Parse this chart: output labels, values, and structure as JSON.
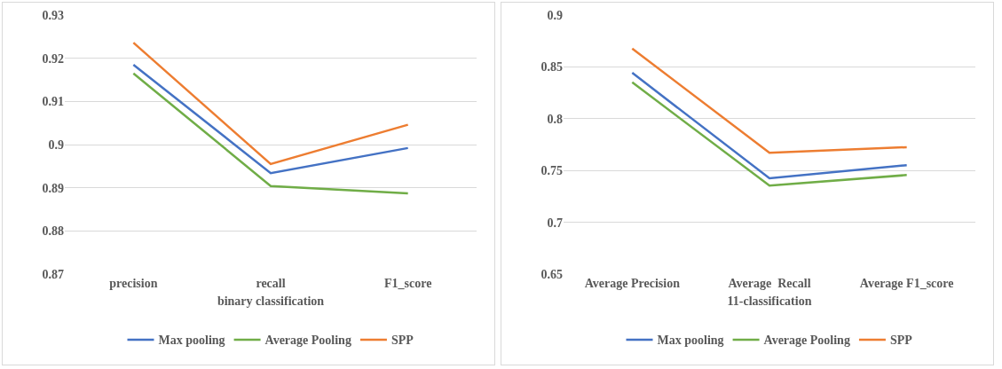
{
  "chart_data": [
    {
      "type": "line",
      "xlabel": "binary classification",
      "categories": [
        "precision",
        "recall",
        "F1_score"
      ],
      "ylim": [
        0.87,
        0.93
      ],
      "yticks": [
        0.87,
        0.88,
        0.89,
        0.9,
        0.91,
        0.92,
        0.93
      ],
      "grid": "y",
      "legend": "bottom",
      "series": [
        {
          "name": "Max pooling",
          "color": "#4472c4",
          "values": [
            0.9185,
            0.8934,
            0.8992
          ]
        },
        {
          "name": "Average Pooling",
          "color": "#70ad47",
          "values": [
            0.9165,
            0.8904,
            0.8887
          ]
        },
        {
          "name": "SPP",
          "color": "#ed7d31",
          "values": [
            0.9236,
            0.8955,
            0.9046
          ]
        }
      ]
    },
    {
      "type": "line",
      "xlabel": "11-classification",
      "categories": [
        "Average Precision",
        "Average  Recall",
        "Average F1_score"
      ],
      "ylim": [
        0.65,
        0.9
      ],
      "yticks": [
        0.65,
        0.7,
        0.75,
        0.8,
        0.85,
        0.9
      ],
      "grid": "y",
      "legend": "bottom",
      "series": [
        {
          "name": "Max pooling",
          "color": "#4472c4",
          "values": [
            0.8443,
            0.7424,
            0.7551
          ]
        },
        {
          "name": "Average Pooling",
          "color": "#70ad47",
          "values": [
            0.8351,
            0.7354,
            0.7456
          ]
        },
        {
          "name": "SPP",
          "color": "#ed7d31",
          "values": [
            0.8677,
            0.7671,
            0.7725
          ]
        }
      ]
    }
  ]
}
